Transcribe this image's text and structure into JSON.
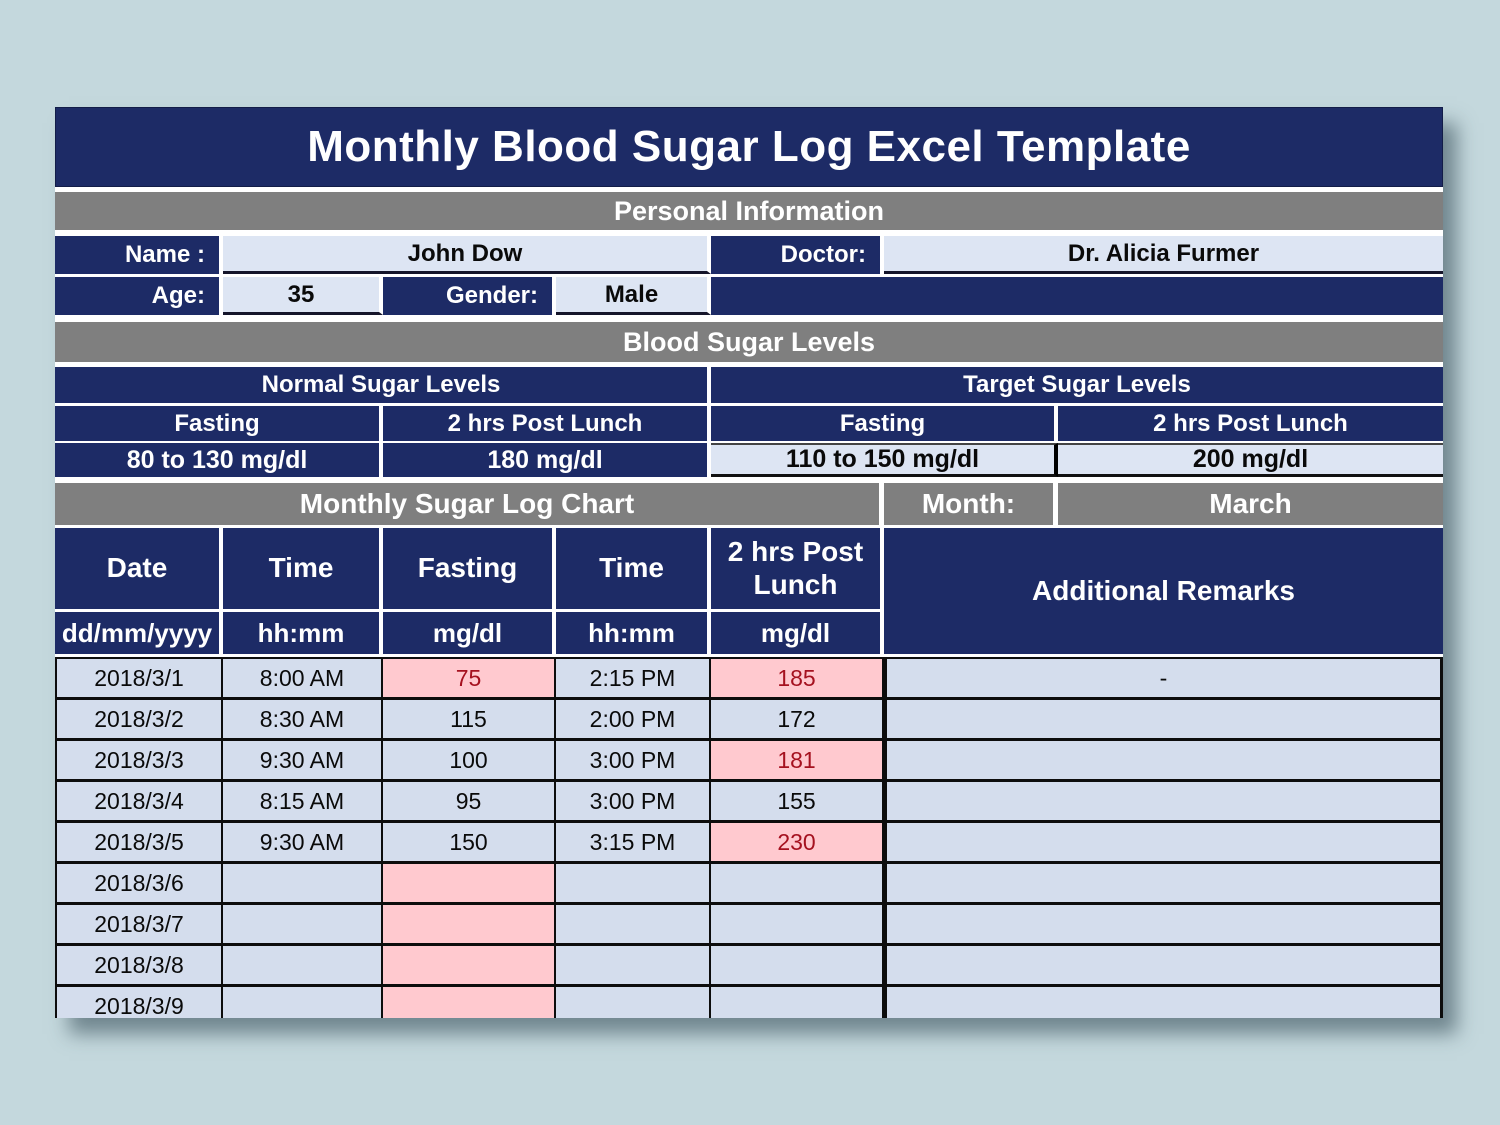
{
  "page": {
    "title": "Monthly Blood Sugar Log Excel Template"
  },
  "personal_info": {
    "section_title": "Personal Information",
    "name_label": "Name :",
    "name_value": "John Dow",
    "doctor_label": "Doctor:",
    "doctor_value": "Dr. Alicia Furmer",
    "age_label": "Age:",
    "age_value": "35",
    "gender_label": "Gender:",
    "gender_value": "Male"
  },
  "sugar_levels": {
    "section_title": "Blood Sugar Levels",
    "normal": {
      "title": "Normal Sugar Levels",
      "fasting_label": "Fasting",
      "post_lunch_label": "2 hrs Post Lunch",
      "fasting_value": "80 to 130 mg/dl",
      "post_lunch_value": "180 mg/dl"
    },
    "target": {
      "title": "Target Sugar Levels",
      "fasting_label": "Fasting",
      "post_lunch_label": "2 hrs Post Lunch",
      "fasting_value": "110 to 150 mg/dl",
      "post_lunch_value": "200 mg/dl"
    }
  },
  "log": {
    "section_title": "Monthly Sugar Log Chart",
    "month_label": "Month:",
    "month_value": "March",
    "columns": {
      "date": "Date",
      "time1": "Time",
      "fasting": "Fasting",
      "time2": "Time",
      "post_lunch": "2 hrs Post Lunch",
      "remarks": "Additional Remarks"
    },
    "units": {
      "date": "dd/mm/yyyy",
      "time1": "hh:mm",
      "fasting": "mg/dl",
      "time2": "hh:mm",
      "post_lunch": "mg/dl"
    },
    "rows": [
      {
        "date": "2018/3/1",
        "time1": "8:00 AM",
        "fasting": "75",
        "fasting_alert": true,
        "time2": "2:15 PM",
        "post_lunch": "185",
        "post_lunch_alert": true,
        "remarks": "-"
      },
      {
        "date": "2018/3/2",
        "time1": "8:30 AM",
        "fasting": "115",
        "fasting_alert": false,
        "time2": "2:00 PM",
        "post_lunch": "172",
        "post_lunch_alert": false,
        "remarks": ""
      },
      {
        "date": "2018/3/3",
        "time1": "9:30 AM",
        "fasting": "100",
        "fasting_alert": false,
        "time2": "3:00 PM",
        "post_lunch": "181",
        "post_lunch_alert": true,
        "remarks": ""
      },
      {
        "date": "2018/3/4",
        "time1": "8:15 AM",
        "fasting": "95",
        "fasting_alert": false,
        "time2": "3:00 PM",
        "post_lunch": "155",
        "post_lunch_alert": false,
        "remarks": ""
      },
      {
        "date": "2018/3/5",
        "time1": "9:30 AM",
        "fasting": "150",
        "fasting_alert": false,
        "time2": "3:15 PM",
        "post_lunch": "230",
        "post_lunch_alert": true,
        "remarks": ""
      },
      {
        "date": "2018/3/6",
        "time1": "",
        "fasting": "",
        "fasting_alert": true,
        "time2": "",
        "post_lunch": "",
        "post_lunch_alert": false,
        "remarks": ""
      },
      {
        "date": "2018/3/7",
        "time1": "",
        "fasting": "",
        "fasting_alert": true,
        "time2": "",
        "post_lunch": "",
        "post_lunch_alert": false,
        "remarks": ""
      },
      {
        "date": "2018/3/8",
        "time1": "",
        "fasting": "",
        "fasting_alert": true,
        "time2": "",
        "post_lunch": "",
        "post_lunch_alert": false,
        "remarks": ""
      },
      {
        "date": "2018/3/9",
        "time1": "",
        "fasting": "",
        "fasting_alert": true,
        "time2": "",
        "post_lunch": "",
        "post_lunch_alert": false,
        "remarks": ""
      }
    ]
  },
  "colors": {
    "navy": "#1d2b66",
    "gray": "#7f7f7f",
    "cell_light": "#dde5f3",
    "cell_data": "#d4dded",
    "alert_bg": "#ffc9cf",
    "alert_text": "#a5111f",
    "background": "#c4d8dd"
  }
}
